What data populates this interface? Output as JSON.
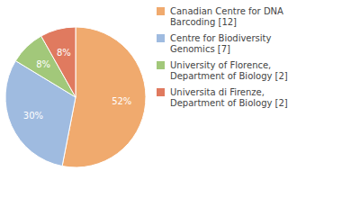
{
  "chart_data": {
    "type": "pie",
    "categories": [
      "Canadian Centre for DNA Barcoding [12]",
      "Centre for Biodiversity Genomics [7]",
      "University of Florence, Department of Biology [2]",
      "Universita di Firenze, Department of Biology [2]"
    ],
    "values": [
      52,
      30,
      8,
      8
    ],
    "value_labels": [
      "52%",
      "30%",
      "8%",
      "8%"
    ],
    "colors": [
      "#f0aa6e",
      "#9fbbe0",
      "#a2c87a",
      "#e07a5f"
    ],
    "data_labels": true,
    "legend": "top-right"
  }
}
